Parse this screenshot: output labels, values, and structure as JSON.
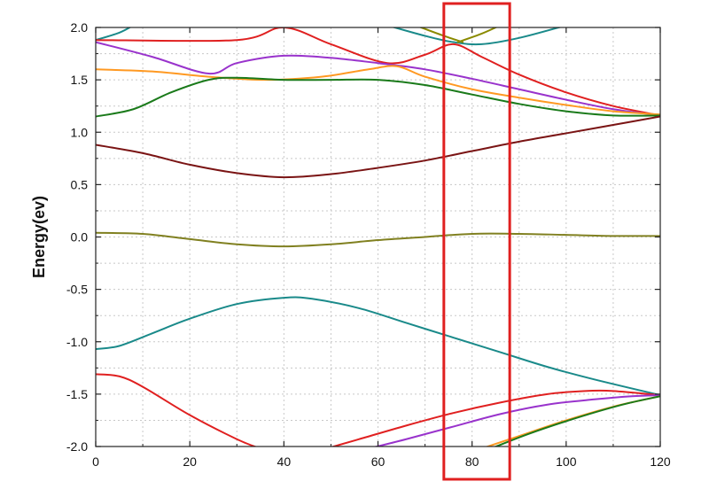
{
  "chart_data": {
    "type": "line",
    "title": "",
    "xlabel": "",
    "ylabel": "Energy(ev)",
    "xlim": [
      0,
      120
    ],
    "ylim": [
      -2.0,
      2.0
    ],
    "xticks": [
      0,
      20,
      40,
      60,
      80,
      100,
      120
    ],
    "xtick_labels": [
      "0",
      "20",
      "40",
      "60",
      "80",
      "100",
      "120"
    ],
    "yticks": [
      -2.0,
      -1.5,
      -1.0,
      -0.5,
      0.0,
      0.5,
      1.0,
      1.5,
      2.0
    ],
    "ytick_labels": [
      "-2.0",
      "-1.5",
      "-1.0",
      "-0.5",
      "0.0",
      "0.5",
      "1.0",
      "1.5",
      "2.0"
    ],
    "grid": true,
    "highlight_box": {
      "x_range": [
        74,
        88
      ],
      "color": "#e02020"
    },
    "series": [
      {
        "color": "#1a8a8a",
        "x": [
          0,
          5,
          8
        ],
        "y": [
          1.88,
          1.95,
          2.02
        ]
      },
      {
        "color": "#1a8a8a",
        "x": [
          62,
          70,
          76,
          82,
          90,
          100
        ],
        "y": [
          2.02,
          1.92,
          1.86,
          1.84,
          1.9,
          2.02
        ]
      },
      {
        "color": "#8a8a00",
        "x": [
          68,
          74,
          78
        ],
        "y": [
          2.02,
          1.92,
          1.86
        ]
      },
      {
        "color": "#8a8a00",
        "x": [
          77,
          82,
          86
        ],
        "y": [
          1.86,
          1.94,
          2.02
        ]
      },
      {
        "color": "#e02020",
        "x": [
          0,
          30,
          40,
          50,
          62,
          70,
          76,
          82,
          90,
          100,
          110,
          120
        ],
        "y": [
          1.88,
          1.88,
          2.0,
          1.84,
          1.66,
          1.74,
          1.84,
          1.72,
          1.55,
          1.38,
          1.25,
          1.16
        ]
      },
      {
        "color": "#9933cc",
        "x": [
          0,
          12,
          24,
          30,
          40,
          50,
          60,
          70,
          80,
          90,
          100,
          110,
          120
        ],
        "y": [
          1.86,
          1.72,
          1.56,
          1.66,
          1.73,
          1.71,
          1.66,
          1.6,
          1.51,
          1.41,
          1.31,
          1.22,
          1.16
        ]
      },
      {
        "color": "#ff9922",
        "x": [
          0,
          12,
          24,
          36,
          48,
          58,
          64,
          70,
          80,
          90,
          100,
          110,
          120
        ],
        "y": [
          1.6,
          1.58,
          1.53,
          1.5,
          1.53,
          1.6,
          1.63,
          1.53,
          1.41,
          1.33,
          1.26,
          1.2,
          1.17
        ]
      },
      {
        "color": "#1a7a1a",
        "x": [
          0,
          8,
          16,
          24,
          30,
          40,
          50,
          60,
          70,
          80,
          90,
          100,
          110,
          120
        ],
        "y": [
          1.15,
          1.22,
          1.38,
          1.5,
          1.52,
          1.5,
          1.5,
          1.5,
          1.45,
          1.36,
          1.27,
          1.2,
          1.16,
          1.16
        ]
      },
      {
        "color": "#7a1414",
        "x": [
          0,
          10,
          20,
          30,
          40,
          50,
          60,
          70,
          80,
          90,
          100,
          110,
          120
        ],
        "y": [
          0.88,
          0.8,
          0.69,
          0.61,
          0.57,
          0.6,
          0.66,
          0.73,
          0.82,
          0.91,
          0.99,
          1.07,
          1.15
        ]
      },
      {
        "color": "#808020",
        "x": [
          0,
          10,
          20,
          30,
          40,
          50,
          60,
          70,
          80,
          90,
          100,
          110,
          120
        ],
        "y": [
          0.04,
          0.03,
          -0.02,
          -0.07,
          -0.09,
          -0.07,
          -0.03,
          0.0,
          0.03,
          0.03,
          0.02,
          0.01,
          0.01
        ]
      },
      {
        "color": "#1a8a8a",
        "x": [
          0,
          5,
          12,
          20,
          30,
          40,
          46,
          56,
          66,
          76,
          86,
          96,
          106,
          120
        ],
        "y": [
          -1.07,
          -1.04,
          -0.92,
          -0.78,
          -0.64,
          -0.58,
          -0.59,
          -0.68,
          -0.82,
          -0.96,
          -1.1,
          -1.24,
          -1.36,
          -1.51
        ]
      },
      {
        "color": "#e02020",
        "x": [
          0,
          5,
          10,
          20,
          30,
          35
        ],
        "y": [
          -1.31,
          -1.33,
          -1.43,
          -1.7,
          -1.93,
          -2.02
        ]
      },
      {
        "color": "#e02020",
        "x": [
          49,
          56,
          66,
          76,
          86,
          96,
          104,
          110,
          120
        ],
        "y": [
          -2.02,
          -1.93,
          -1.8,
          -1.68,
          -1.58,
          -1.5,
          -1.47,
          -1.47,
          -1.51
        ]
      },
      {
        "color": "#9933cc",
        "x": [
          58,
          66,
          76,
          86,
          96,
          106,
          114,
          120
        ],
        "y": [
          -2.02,
          -1.93,
          -1.81,
          -1.69,
          -1.6,
          -1.55,
          -1.52,
          -1.51
        ]
      },
      {
        "color": "#ff9922",
        "x": [
          82,
          90,
          100,
          110,
          120
        ],
        "y": [
          -2.02,
          -1.9,
          -1.75,
          -1.62,
          -1.52
        ]
      },
      {
        "color": "#1a7a1a",
        "x": [
          84,
          92,
          102,
          112,
          120
        ],
        "y": [
          -2.02,
          -1.88,
          -1.73,
          -1.6,
          -1.52
        ]
      }
    ]
  }
}
